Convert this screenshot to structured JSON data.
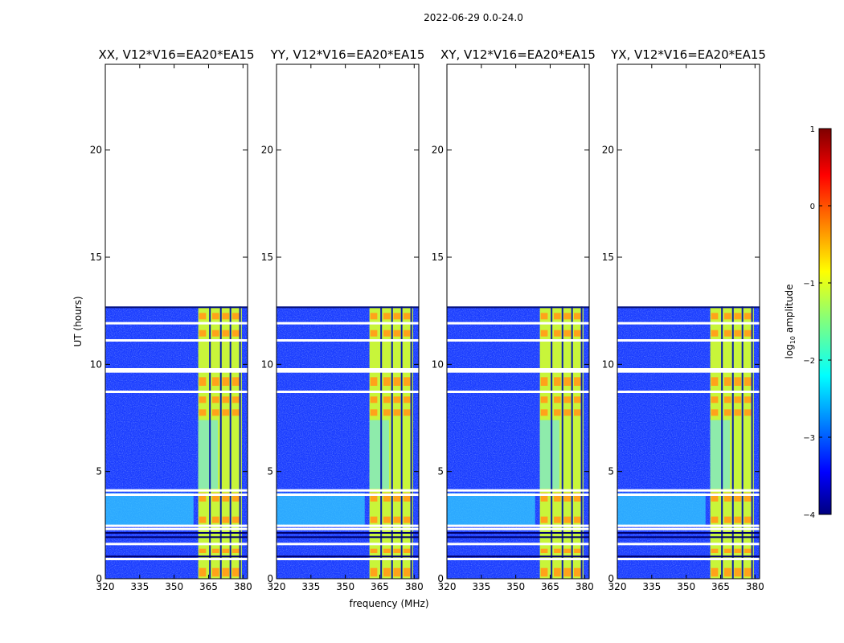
{
  "figure": {
    "suptitle": "2022-06-29 0.0-24.0",
    "xlabel": "frequency (MHz)",
    "ylabel": "UT (hours)"
  },
  "chart_data": {
    "type": "heatmap",
    "x_range": [
      320,
      382
    ],
    "y_range": [
      0,
      24
    ],
    "x_ticks": [
      320,
      335,
      350,
      365,
      380
    ],
    "y_ticks": [
      0,
      5,
      10,
      15,
      20
    ],
    "data_end_hour": 12.7,
    "colormap": "jet",
    "panels": [
      {
        "title": "XX, V12*V16=EA20*EA15",
        "band_start_mhz": 360.5,
        "band_end_mhz": 379.5
      },
      {
        "title": "YY, V12*V16=EA20*EA15",
        "band_start_mhz": 360.5,
        "band_end_mhz": 379.5
      },
      {
        "title": "XY, V12*V16=EA20*EA15",
        "band_start_mhz": 360.5,
        "band_end_mhz": 379.5
      },
      {
        "title": "YX, V12*V16=EA20*EA15",
        "band_start_mhz": 360.5,
        "band_end_mhz": 379.5
      }
    ],
    "data_gaps_hours": [
      0.9,
      1.6,
      2.3,
      2.45,
      3.9,
      4.1,
      8.7,
      9.65,
      9.75,
      11.1,
      11.9
    ],
    "colorbar": {
      "label": "log10 amplitude",
      "label_main": "log",
      "label_sub": "10",
      "label_rest": " amplitude",
      "range": [
        -4,
        1
      ],
      "ticks": [
        {
          "value": 1,
          "label": "1"
        },
        {
          "value": 0,
          "label": "0"
        },
        {
          "value": -1,
          "label": "−1"
        },
        {
          "value": -2,
          "label": "−2"
        },
        {
          "value": -3,
          "label": "−3"
        },
        {
          "value": -4,
          "label": "−4"
        }
      ]
    }
  }
}
